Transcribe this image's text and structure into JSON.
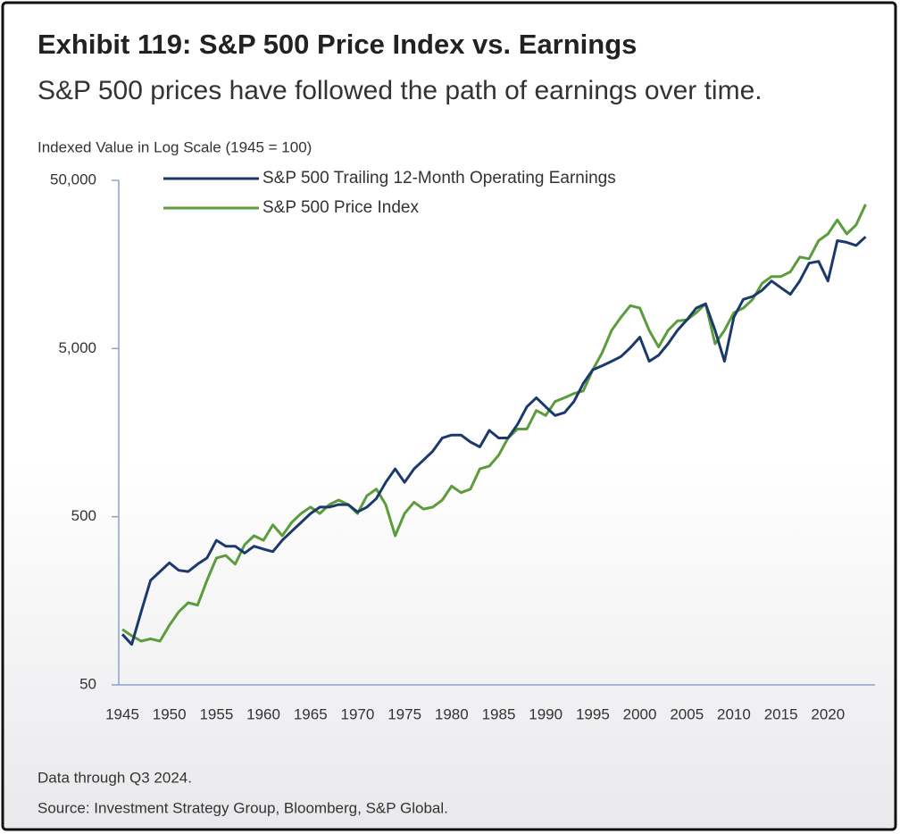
{
  "chart_data": {
    "type": "line",
    "title": "Exhibit 119: S&P 500 Price Index vs. Earnings",
    "subtitle": "S&P 500 prices have followed the path of earnings over time.",
    "y_label": "Indexed Value in Log Scale (1945 = 100)",
    "notes": [
      "Data through Q3 2024.",
      "Source: Investment Strategy Group, Bloomberg, S&P Global."
    ],
    "log_y": true,
    "grid": false,
    "legend": "top-left",
    "xlim": [
      1945,
      2025
    ],
    "xticks": [
      1945,
      1950,
      1955,
      1960,
      1965,
      1970,
      1975,
      1980,
      1985,
      1990,
      1995,
      2000,
      2005,
      2010,
      2015,
      2020
    ],
    "ylim": [
      50,
      50000
    ],
    "yticks": [
      {
        "value": 50000,
        "label": "50,000"
      },
      {
        "value": 5000,
        "label": "5,000"
      },
      500,
      50
    ],
    "x": [
      1945,
      1946,
      1947,
      1948,
      1949,
      1950,
      1951,
      1952,
      1953,
      1954,
      1955,
      1956,
      1957,
      1958,
      1959,
      1960,
      1961,
      1962,
      1963,
      1964,
      1965,
      1966,
      1967,
      1968,
      1969,
      1970,
      1971,
      1972,
      1973,
      1974,
      1975,
      1976,
      1977,
      1978,
      1979,
      1980,
      1981,
      1982,
      1983,
      1984,
      1985,
      1986,
      1987,
      1988,
      1989,
      1990,
      1991,
      1992,
      1993,
      1994,
      1995,
      1996,
      1997,
      1998,
      1999,
      2000,
      2001,
      2002,
      2003,
      2004,
      2005,
      2006,
      2007,
      2008,
      2009,
      2010,
      2011,
      2012,
      2013,
      2014,
      2015,
      2016,
      2017,
      2018,
      2019,
      2020,
      2021,
      2022,
      2023,
      2024
    ],
    "series": [
      {
        "name": "S&P 500 Trailing 12-Month Operating Earnings",
        "color": "#1b3a6b",
        "values": [
          100,
          87,
          136,
          209,
          236,
          266,
          240,
          236,
          261,
          284,
          362,
          334,
          334,
          304,
          334,
          321,
          310,
          362,
          410,
          462,
          522,
          570,
          570,
          590,
          590,
          534,
          570,
          641,
          800,
          962,
          800,
          962,
          1085,
          1226,
          1470,
          1530,
          1530,
          1390,
          1300,
          1630,
          1470,
          1470,
          1770,
          2250,
          2550,
          2250,
          2000,
          2080,
          2420,
          3100,
          3740,
          3950,
          4200,
          4480,
          5060,
          5840,
          4200,
          4560,
          5340,
          6410,
          7400,
          8700,
          9230,
          6410,
          4200,
          7680,
          9800,
          10200,
          11100,
          12600,
          11500,
          10500,
          12600,
          16100,
          16500,
          12600,
          21900,
          21400,
          20500,
          23100
        ]
      },
      {
        "name": "S&P 500 Price Index",
        "color": "#5b9c3c",
        "values": [
          107,
          98,
          91,
          94,
          91,
          113,
          136,
          154,
          149,
          209,
          284,
          294,
          261,
          341,
          385,
          362,
          447,
          385,
          462,
          522,
          570,
          522,
          590,
          628,
          590,
          522,
          667,
          730,
          590,
          385,
          522,
          610,
          555,
          570,
          628,
          760,
          695,
          730,
          962,
          1000,
          1160,
          1470,
          1660,
          1660,
          2140,
          2000,
          2420,
          2550,
          2700,
          2800,
          3740,
          4720,
          6410,
          7680,
          9000,
          8700,
          6410,
          5110,
          6410,
          7300,
          7400,
          8170,
          9230,
          5340,
          6410,
          8170,
          8700,
          9800,
          12200,
          13400,
          13400,
          14300,
          17500,
          17100,
          21900,
          24000,
          29100,
          24000,
          27200,
          36000
        ]
      }
    ]
  }
}
